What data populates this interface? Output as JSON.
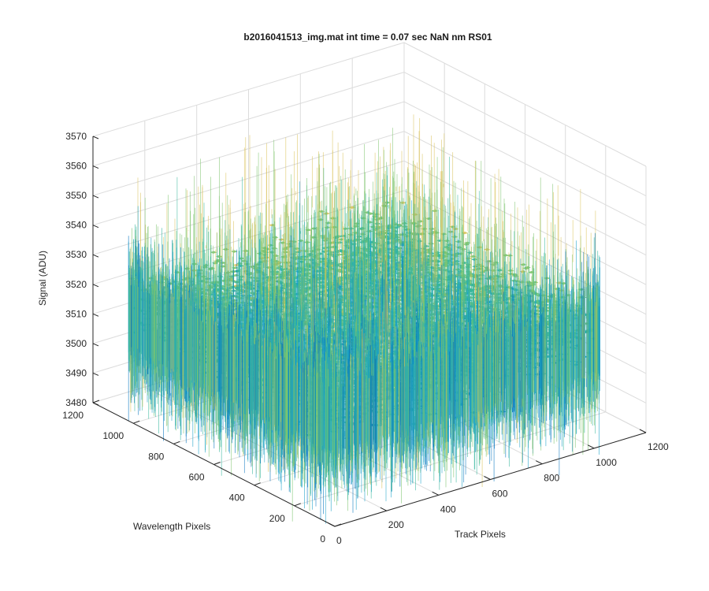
{
  "chart_data": {
    "type": "surface",
    "title": "b2016041513_img.mat int time = 0.07 sec  NaN nm RS01",
    "xlabel": "Track Pixels",
    "ylabel": "Wavelength Pixels",
    "zlabel": "Signal (ADU)",
    "xlim": [
      0,
      1200
    ],
    "ylim": [
      0,
      1200
    ],
    "zlim": [
      3480,
      3570
    ],
    "x_ticks": [
      "0",
      "200",
      "400",
      "600",
      "800",
      "1000",
      "1200"
    ],
    "y_ticks": [
      "0",
      "200",
      "400",
      "600",
      "800",
      "1000",
      "1200"
    ],
    "z_ticks": [
      "3480",
      "3490",
      "3500",
      "3510",
      "3520",
      "3530",
      "3540",
      "3550",
      "3560",
      "3570"
    ],
    "data_extent": {
      "x": [
        0,
        1024
      ],
      "y": [
        0,
        1024
      ]
    },
    "signal_mean": 3518,
    "signal_typical_range": [
      3495,
      3545
    ],
    "signal_extremes": [
      3485,
      3565
    ],
    "colormap": [
      "#0072bd",
      "#1aa0c8",
      "#35b79c",
      "#7ec46e",
      "#d9c25a"
    ],
    "grid": true,
    "view": "3d"
  }
}
